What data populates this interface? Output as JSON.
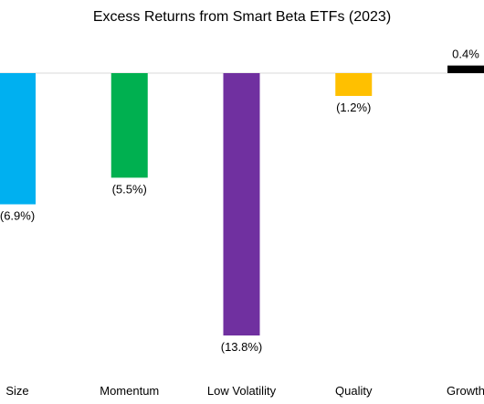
{
  "chart_data": {
    "type": "bar",
    "title": "Excess Returns from Smart Beta ETFs (2023)",
    "xlabel": "",
    "ylabel": "",
    "categories": [
      "Size",
      "Momentum",
      "Low Volatility",
      "Quality",
      "Growth"
    ],
    "values": [
      -6.9,
      -5.5,
      -13.8,
      -1.2,
      0.4
    ],
    "value_unit": "%",
    "data_labels": [
      "(6.9%)",
      "(5.5%)",
      "(13.8%)",
      "(1.2%)",
      "0.4%"
    ],
    "colors": [
      "#00b0f0",
      "#00b050",
      "#7030a0",
      "#ffc000",
      "#000000"
    ],
    "ylim": [
      -14.5,
      1.5
    ],
    "grid": false,
    "legend": "none"
  }
}
